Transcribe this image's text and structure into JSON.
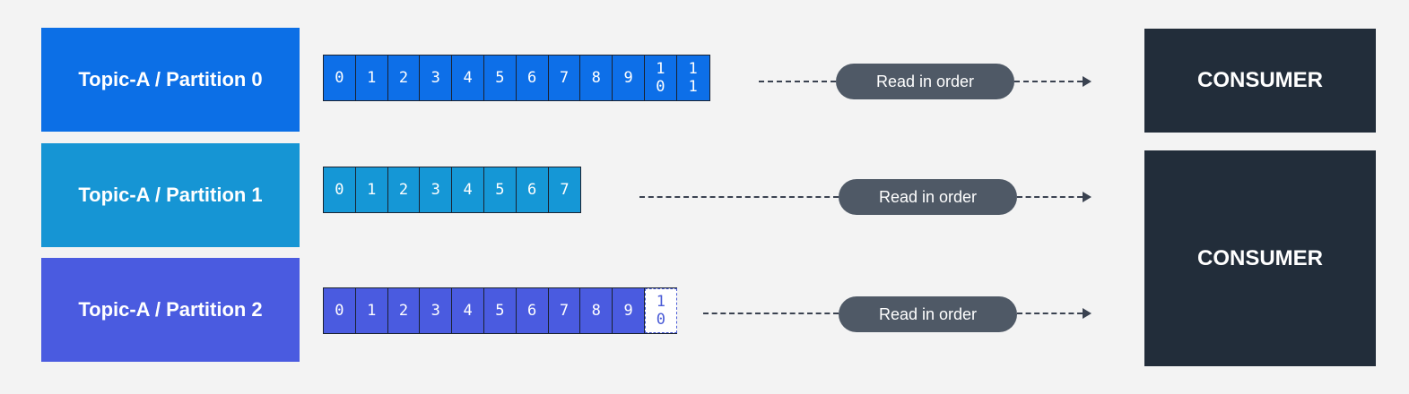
{
  "partitions": [
    {
      "label": "Topic-A / Partition 0",
      "color": "#0c6fe6",
      "cell_color": "#0d6fe8",
      "offsets": [
        "0",
        "1",
        "2",
        "3",
        "4",
        "5",
        "6",
        "7",
        "8",
        "9",
        "1\n0",
        "1\n1"
      ],
      "pending_offset": null,
      "read_label": "Read in order"
    },
    {
      "label": "Topic-A / Partition 1",
      "color": "#1695d4",
      "cell_color": "#1597d6",
      "offsets": [
        "0",
        "1",
        "2",
        "3",
        "4",
        "5",
        "6",
        "7"
      ],
      "pending_offset": null,
      "read_label": "Read in order"
    },
    {
      "label": "Topic-A / Partition 2",
      "color": "#4a5be0",
      "cell_color": "#4a5be0",
      "offsets": [
        "0",
        "1",
        "2",
        "3",
        "4",
        "5",
        "6",
        "7",
        "8",
        "9"
      ],
      "pending_offset": "1\n0",
      "read_label": "Read in order"
    }
  ],
  "consumers": [
    {
      "label": "CONSUMER"
    },
    {
      "label": "CONSUMER"
    }
  ]
}
